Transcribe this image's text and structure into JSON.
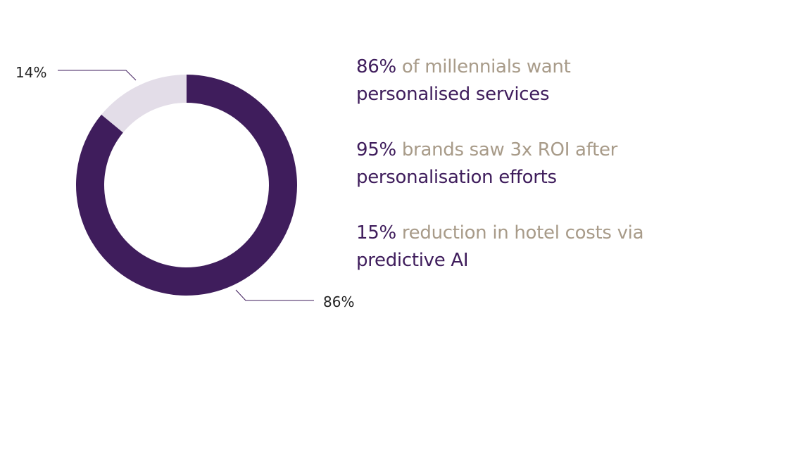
{
  "colors": {
    "primary": "#3f1d5c",
    "secondary": "#e3dde8",
    "accent": "#a89b89",
    "label_line": "#3f1d5c"
  },
  "chart_data": {
    "type": "pie",
    "subtype": "donut",
    "slices": [
      {
        "label": "86%",
        "value": 86,
        "color": "#3f1d5c"
      },
      {
        "label": "14%",
        "value": 14,
        "color": "#e3dde8"
      }
    ]
  },
  "stats": [
    {
      "lead": "86%",
      "rest": " of millennials want",
      "tail": "personalised services"
    },
    {
      "lead": "95%",
      "rest": " brands saw 3x ROI after",
      "tail": "personalisation efforts"
    },
    {
      "lead": "15%",
      "rest": " reduction in hotel costs via",
      "tail": "predictive AI"
    }
  ]
}
